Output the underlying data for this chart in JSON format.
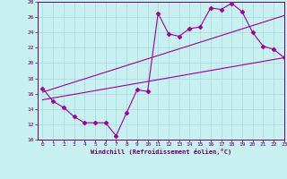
{
  "xlabel": "Windchill (Refroidissement éolien,°C)",
  "bg_color": "#c8f0f0",
  "line_color": "#990099",
  "grid_color": "#a8dada",
  "xlim": [
    -0.5,
    23
  ],
  "ylim": [
    10,
    28
  ],
  "xticks": [
    0,
    1,
    2,
    3,
    4,
    5,
    6,
    7,
    8,
    9,
    10,
    11,
    12,
    13,
    14,
    15,
    16,
    17,
    18,
    19,
    20,
    21,
    22,
    23
  ],
  "yticks": [
    10,
    12,
    14,
    16,
    18,
    20,
    22,
    24,
    26,
    28
  ],
  "line1_x": [
    0,
    1,
    2,
    3,
    4,
    5,
    6,
    7,
    8,
    9,
    10,
    11,
    12,
    13,
    14,
    15,
    16,
    17,
    18,
    19,
    20,
    21,
    22,
    23
  ],
  "line1_y": [
    16.7,
    15.0,
    14.2,
    13.0,
    12.2,
    12.2,
    12.2,
    10.5,
    13.5,
    16.5,
    16.3,
    26.5,
    23.8,
    23.5,
    24.5,
    24.7,
    27.2,
    27.0,
    27.8,
    26.7,
    24.0,
    22.2,
    21.8,
    20.7
  ],
  "line2_x": [
    0,
    23
  ],
  "line2_y": [
    15.2,
    20.7
  ],
  "line3_x": [
    0,
    23
  ],
  "line3_y": [
    16.2,
    26.2
  ]
}
